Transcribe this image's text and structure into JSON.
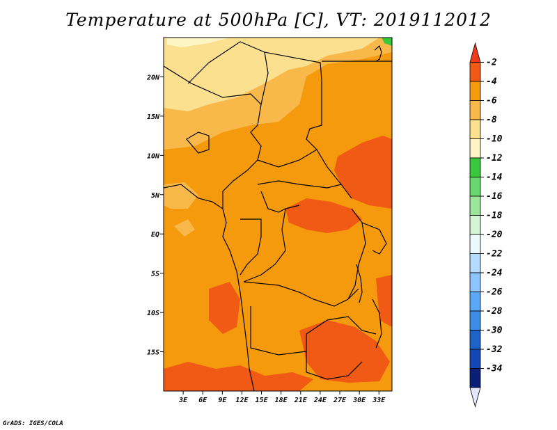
{
  "title": "Temperature at 500hPa [C], VT: 2019112012",
  "credit": "GrADS: IGES/COLA",
  "map": {
    "lon_range": [
      0,
      35
    ],
    "lat_range": [
      -20,
      25
    ],
    "lon_ticks": [
      "3E",
      "6E",
      "9E",
      "12E",
      "15E",
      "18E",
      "21E",
      "24E",
      "27E",
      "30E",
      "33E"
    ],
    "lat_ticks": [
      "20N",
      "15N",
      "10N",
      "5N",
      "EQ",
      "5S",
      "10S",
      "15S"
    ]
  },
  "colorbar": {
    "labels": [
      "-2",
      "-4",
      "-6",
      "-8",
      "-10",
      "-12",
      "-14",
      "-16",
      "-18",
      "-20",
      "-22",
      "-24",
      "-26",
      "-28",
      "-30",
      "-32",
      "-34"
    ],
    "colors": [
      "#ee3a1a",
      "#f05a14",
      "#f59a0c",
      "#f8b84a",
      "#fbe090",
      "#fdf6c4",
      "#37c83c",
      "#68d86c",
      "#9ce69c",
      "#d4f5d4",
      "#eafaff",
      "#b4dcff",
      "#8cc4ff",
      "#5aa8f5",
      "#3c8ce6",
      "#1e64c8",
      "#1446b4",
      "#0a1e78",
      "#e6e6ff"
    ]
  }
}
